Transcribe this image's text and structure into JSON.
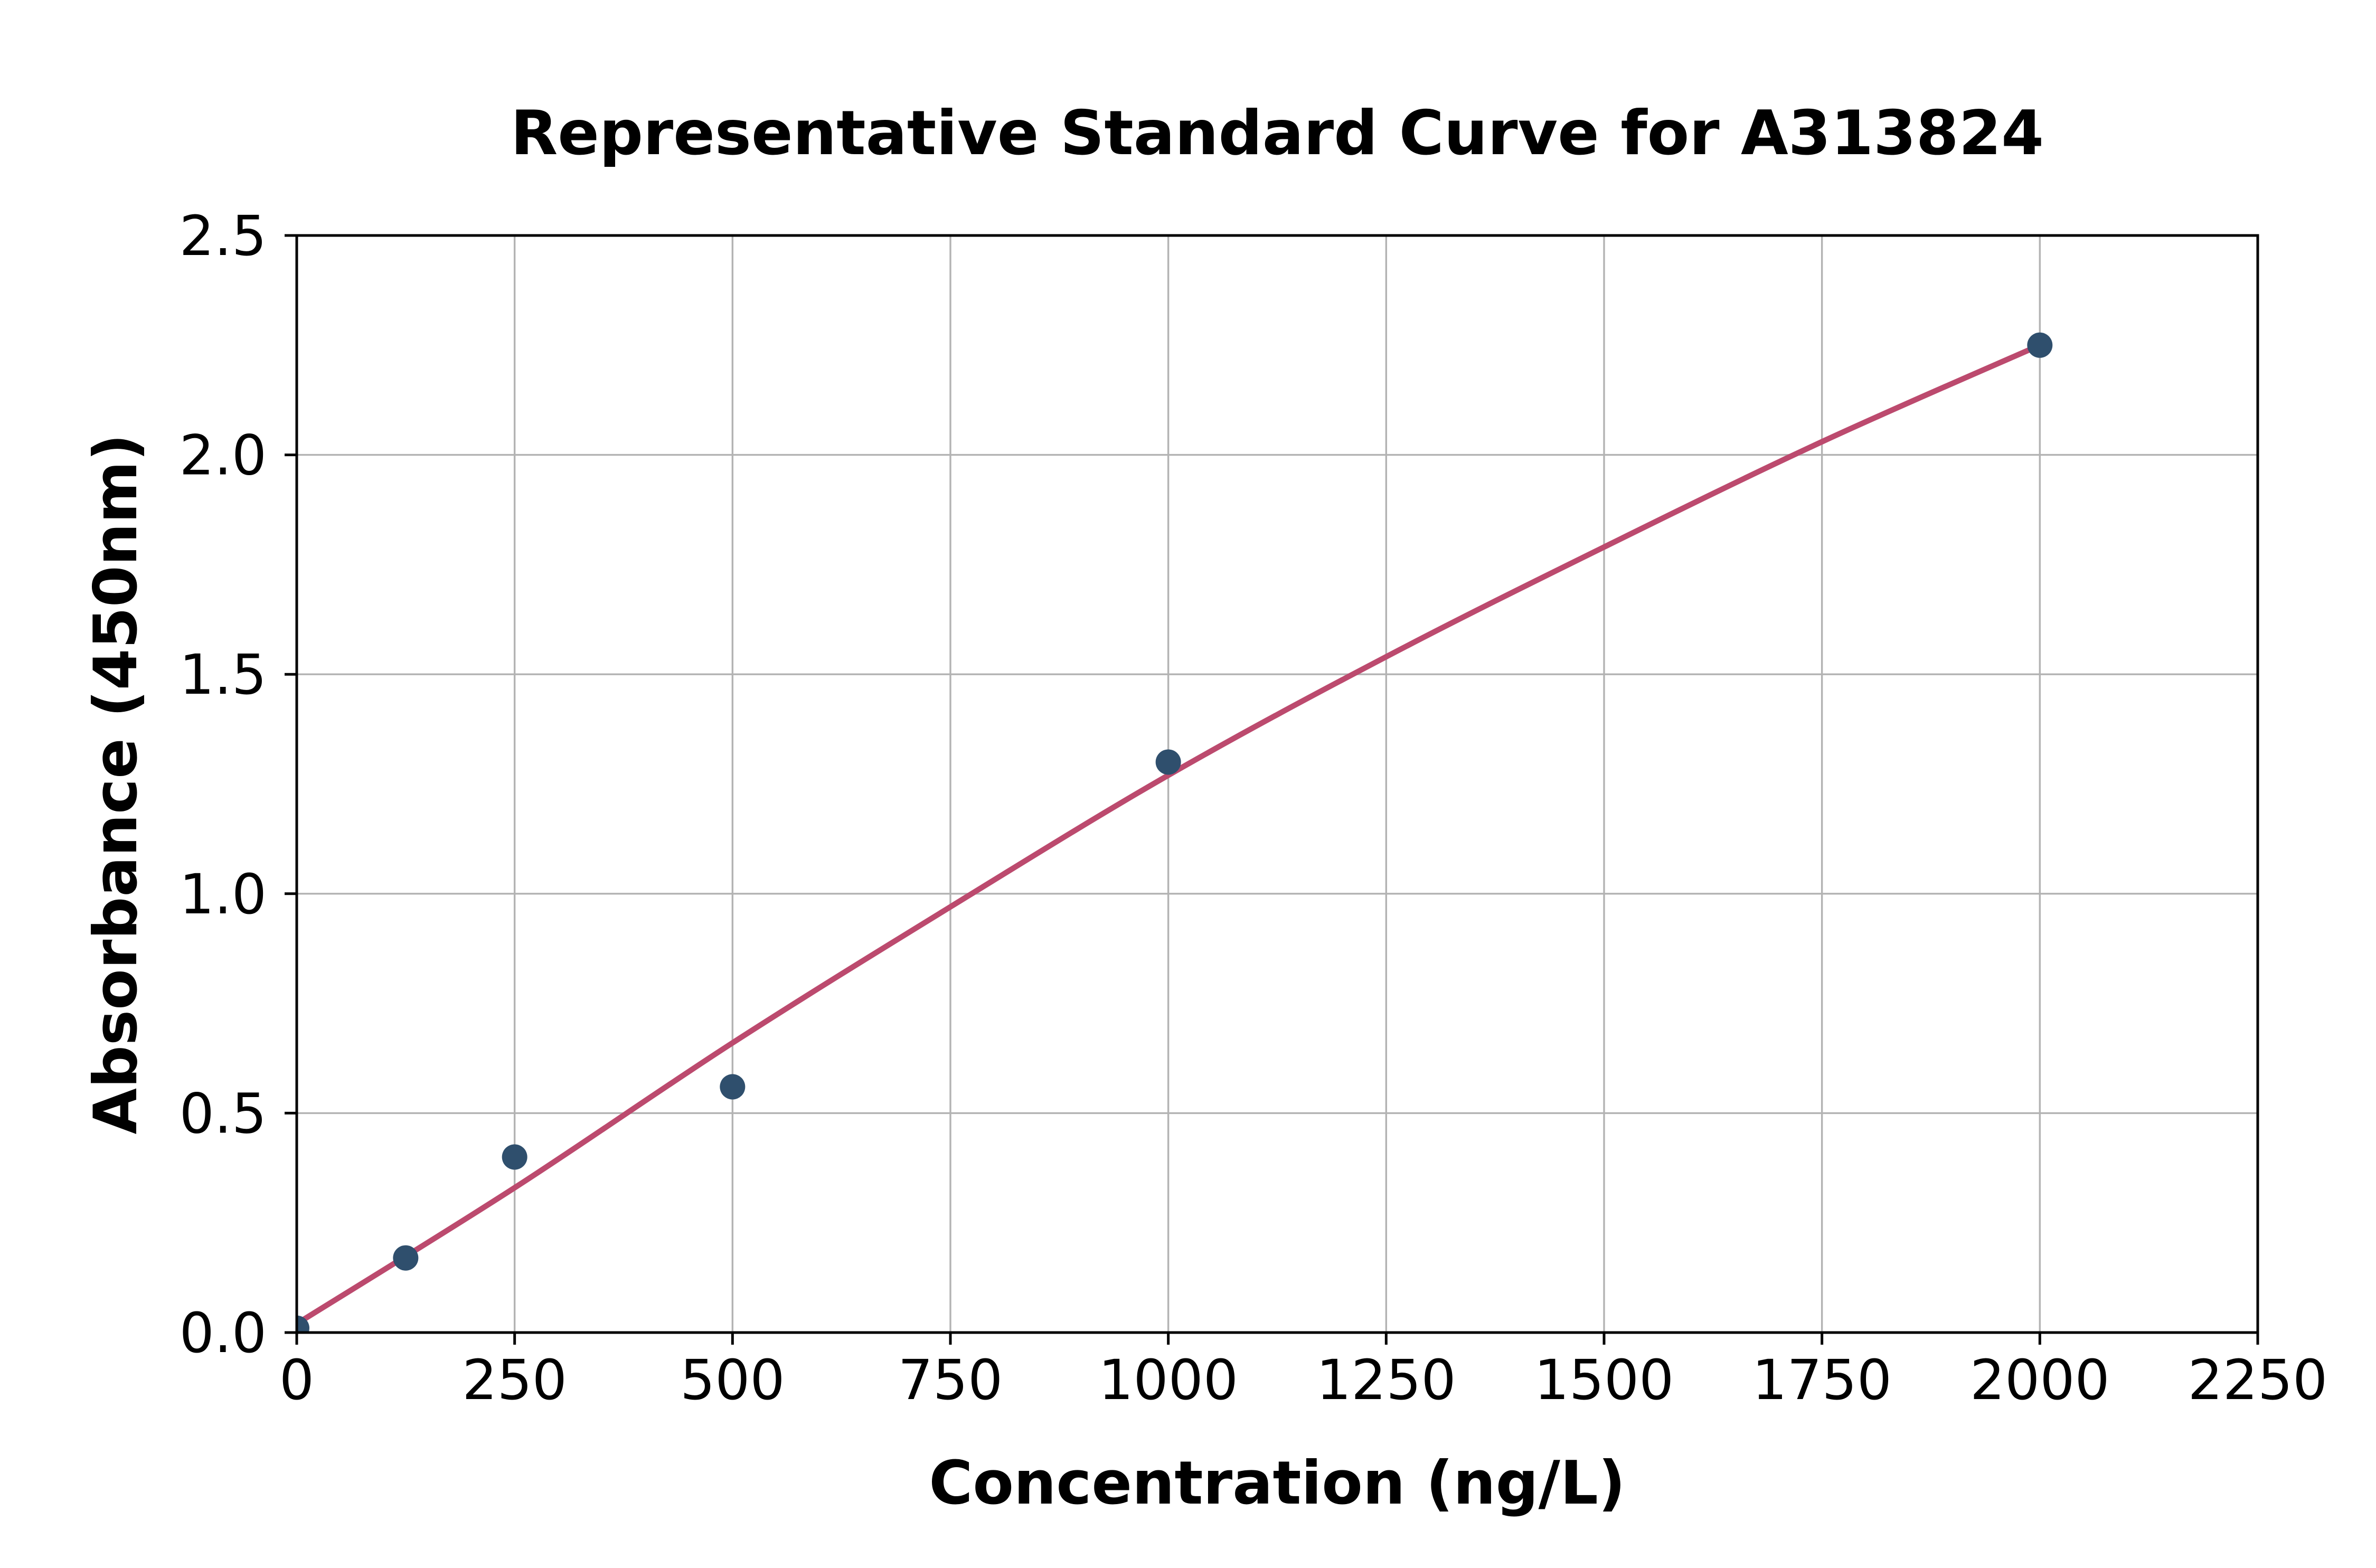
{
  "chart_data": {
    "type": "scatter",
    "title": "Representative Standard Curve for A313824",
    "xlabel": "Concentration (ng/L)",
    "ylabel": "Absorbance (450nm)",
    "xlim": [
      0,
      2250
    ],
    "ylim": [
      0,
      2.5
    ],
    "x_tick_labels": [
      "0",
      "250",
      "500",
      "750",
      "1000",
      "1250",
      "1500",
      "1750",
      "2000",
      "2250"
    ],
    "y_tick_labels": [
      "0.0",
      "0.5",
      "1.0",
      "1.5",
      "2.0",
      "2.5"
    ],
    "grid": true,
    "legend": false,
    "series": [
      {
        "name": "standards",
        "points": {
          "x": [
            0,
            125,
            250,
            500,
            1000,
            2000
          ],
          "y": [
            0.01,
            0.17,
            0.4,
            0.56,
            1.3,
            2.25
          ]
        }
      }
    ],
    "fit_curve": {
      "x": [
        0,
        250,
        500,
        750,
        1000,
        1250,
        1500,
        1750,
        2000
      ],
      "y": [
        0.02,
        0.33,
        0.66,
        0.97,
        1.27,
        1.54,
        1.79,
        2.03,
        2.25
      ]
    },
    "colors": {
      "point": "#2f4f6d",
      "curve": "#bc4a6e",
      "grid": "#b3b3b3",
      "axis": "#000000",
      "background": "#ffffff"
    }
  }
}
